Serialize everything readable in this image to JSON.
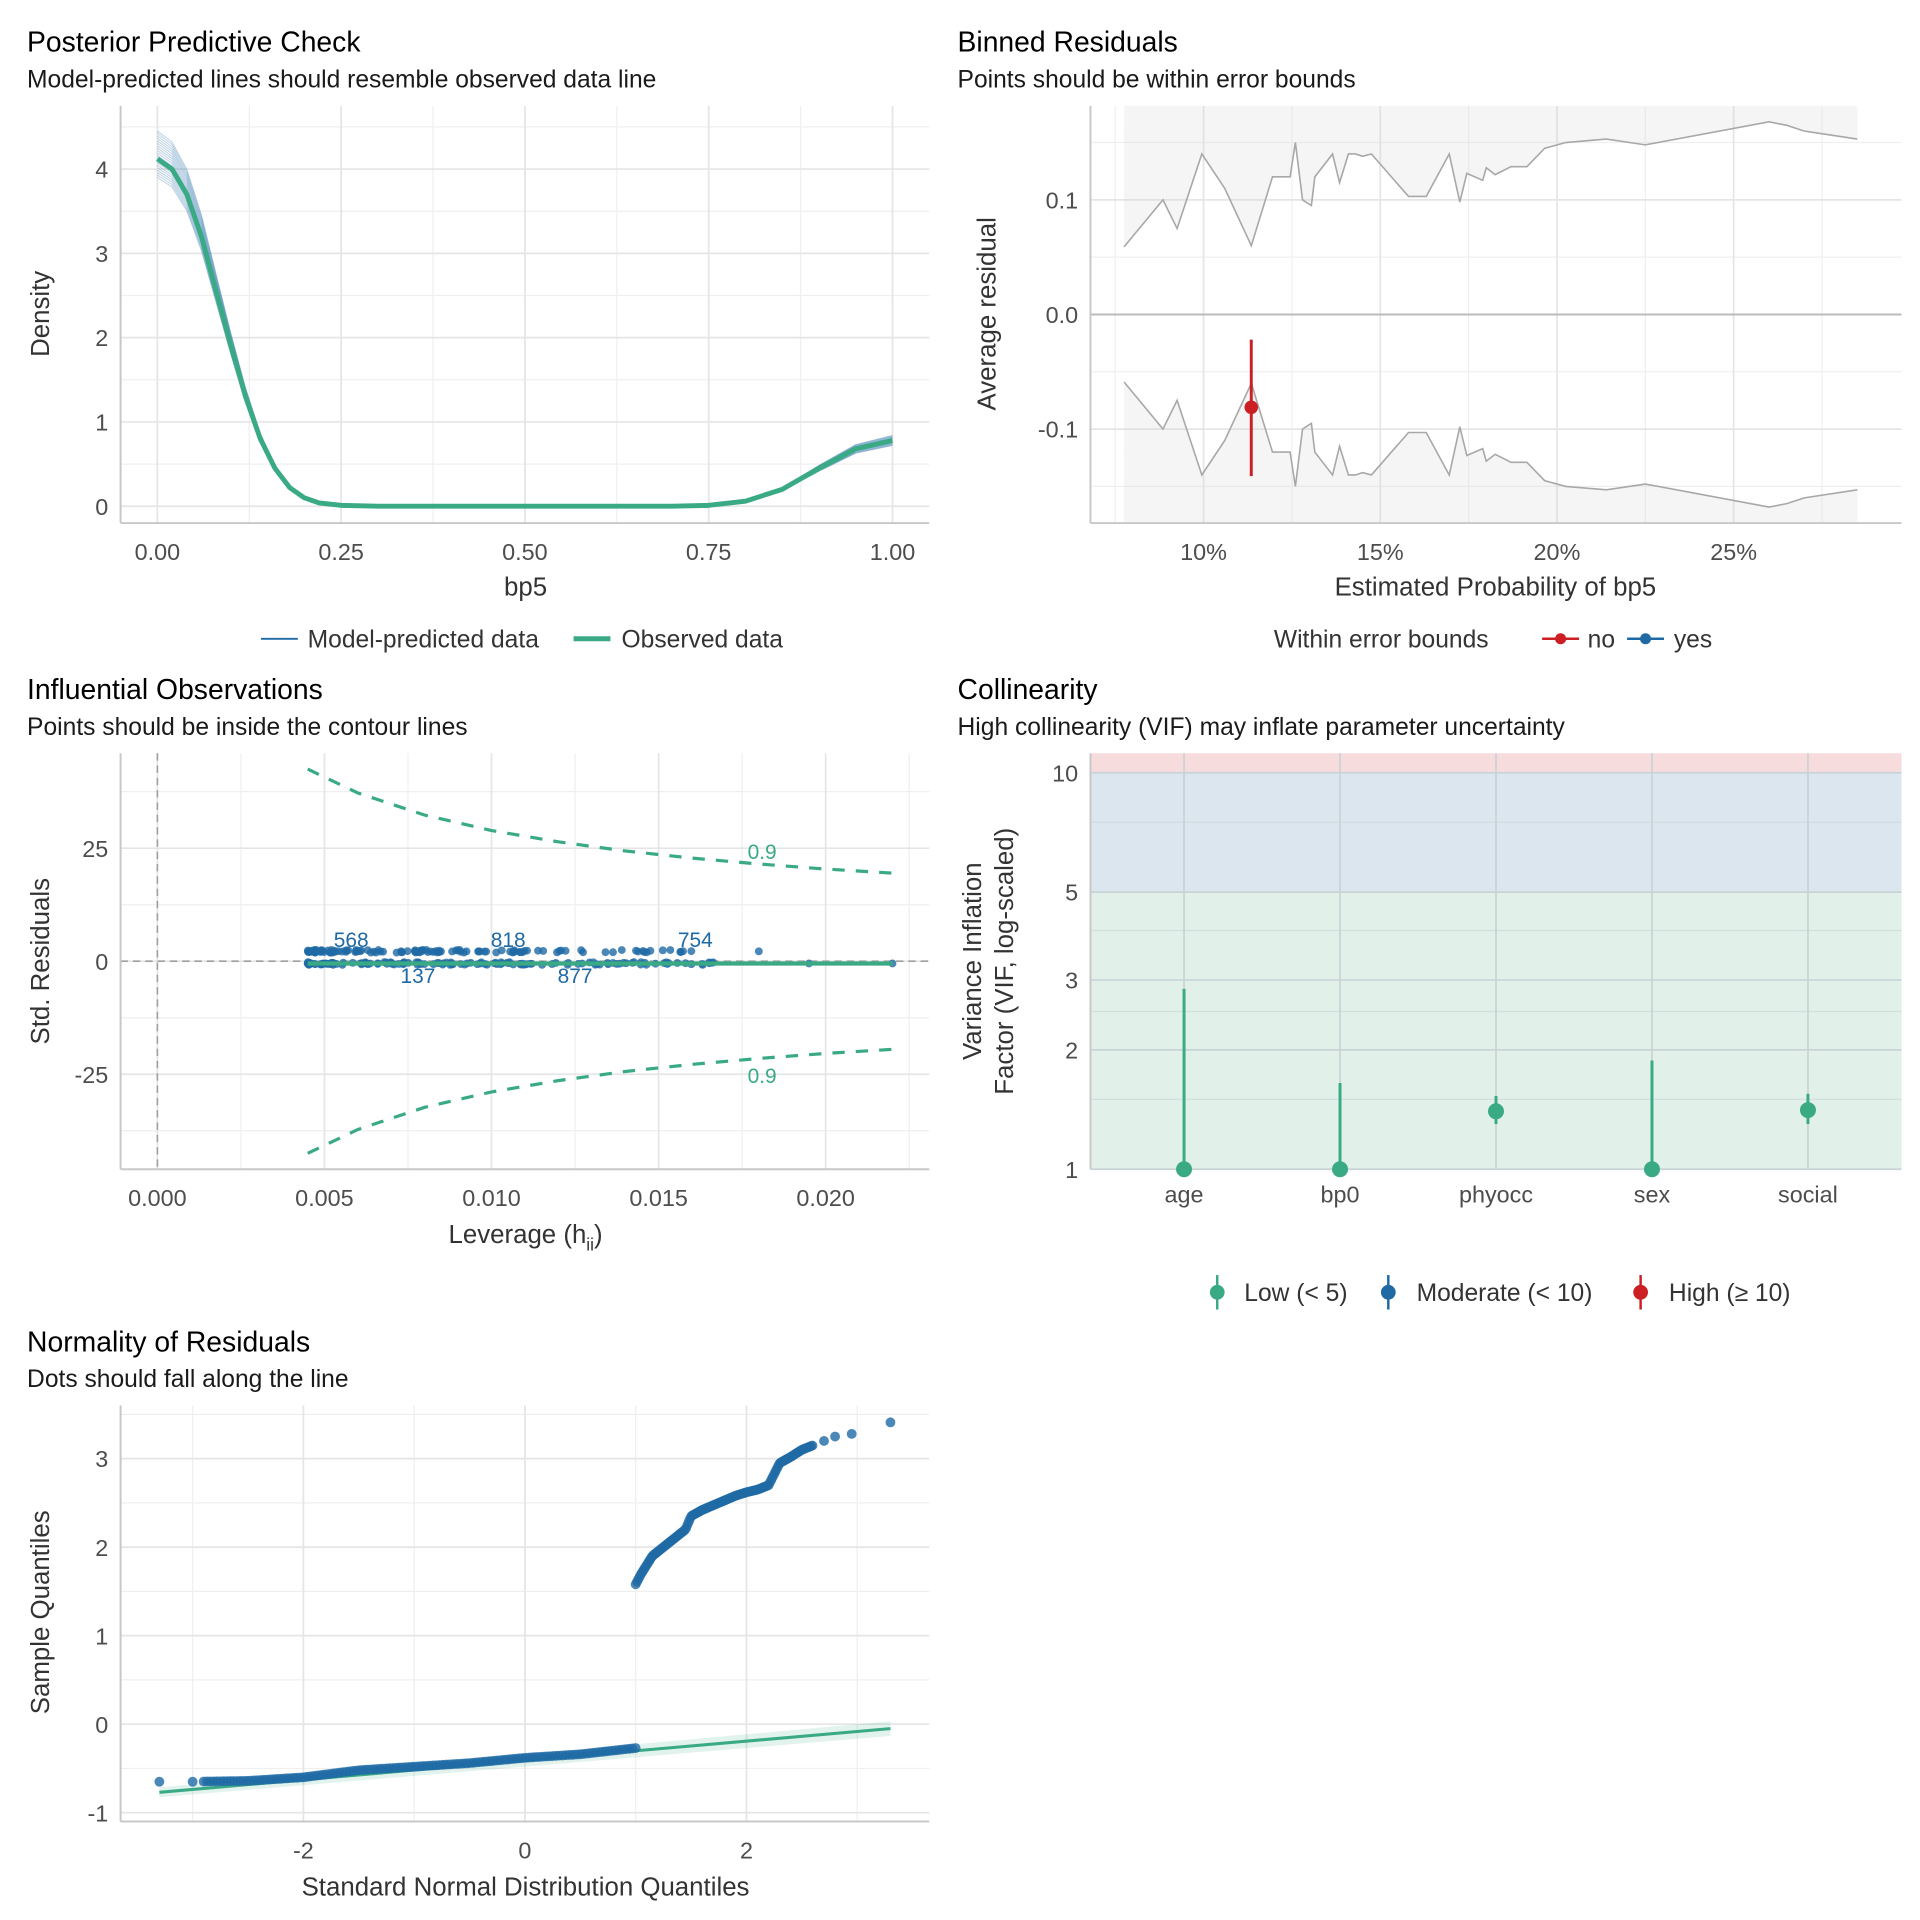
{
  "chart_data": [
    {
      "id": "ppc",
      "type": "line",
      "title": "Posterior Predictive Check",
      "subtitle": "Model-predicted lines should resemble observed data line",
      "xlabel": "bp5",
      "ylabel": "Density",
      "xlim": [
        -0.05,
        1.05
      ],
      "ylim": [
        -0.2,
        4.75
      ],
      "xticks": [
        0.0,
        0.25,
        0.5,
        0.75,
        1.0
      ],
      "xtick_labels": [
        "0.00",
        "0.25",
        "0.50",
        "0.75",
        "1.00"
      ],
      "yticks": [
        0,
        1,
        2,
        3,
        4
      ],
      "ytick_labels": [
        "0",
        "1",
        "2",
        "3",
        "4"
      ],
      "grid": true,
      "legend": {
        "position": "bottom",
        "items": [
          {
            "label": "Model-predicted data",
            "color": "#1f6aa5"
          },
          {
            "label": "Observed data",
            "color": "#3aaa85"
          }
        ]
      },
      "series": [
        {
          "name": "Observed data",
          "color": "#3aaa85",
          "x": [
            0.0,
            0.02,
            0.04,
            0.06,
            0.08,
            0.1,
            0.12,
            0.14,
            0.16,
            0.18,
            0.2,
            0.22,
            0.25,
            0.3,
            0.4,
            0.5,
            0.6,
            0.7,
            0.75,
            0.8,
            0.85,
            0.9,
            0.95,
            1.0
          ],
          "y": [
            4.12,
            4.0,
            3.7,
            3.2,
            2.55,
            1.9,
            1.3,
            0.8,
            0.45,
            0.22,
            0.1,
            0.04,
            0.01,
            0.0,
            0.0,
            0.0,
            0.0,
            0.0,
            0.01,
            0.06,
            0.2,
            0.45,
            0.68,
            0.78
          ]
        }
      ],
      "model_predicted_draws": {
        "color": "#1f6aa5",
        "count": 20,
        "peak_range_at_x0": [
          3.9,
          4.45
        ],
        "value_range_at_x1": [
          0.72,
          0.84
        ]
      }
    },
    {
      "id": "binned",
      "type": "line",
      "title": "Binned Residuals",
      "subtitle": "Points should be within error bounds",
      "xlabel": "Estimated Probability of bp5",
      "ylabel": "Average residual",
      "xlim": [
        0.068,
        0.2975
      ],
      "ylim": [
        -0.182,
        0.182
      ],
      "xticks": [
        0.1,
        0.15,
        0.2,
        0.25
      ],
      "xtick_labels": [
        "10%",
        "15%",
        "20%",
        "25%"
      ],
      "yticks": [
        -0.1,
        0.0,
        0.1
      ],
      "ytick_labels": [
        "-0.1",
        "0.0",
        "0.1"
      ],
      "grid": true,
      "legend": {
        "position": "bottom",
        "title": "Within error bounds",
        "items": [
          {
            "label": "no",
            "color": "#cb1f23"
          },
          {
            "label": "yes",
            "color": "#1f6aa5"
          }
        ]
      },
      "bounds_x": [
        0.0775,
        0.0885,
        0.0925,
        0.0995,
        0.106,
        0.1135,
        0.1195,
        0.1215,
        0.1245,
        0.126,
        0.128,
        0.1305,
        0.1315,
        0.1365,
        0.1385,
        0.141,
        0.143,
        0.145,
        0.1475,
        0.158,
        0.163,
        0.1695,
        0.1725,
        0.1745,
        0.179,
        0.18,
        0.1825,
        0.187,
        0.1915,
        0.1965,
        0.2025,
        0.214,
        0.225,
        0.26,
        0.265,
        0.27,
        0.285
      ],
      "upper_bound": [
        0.059,
        0.1,
        0.075,
        0.14,
        0.11,
        0.06,
        0.12,
        0.12,
        0.12,
        0.15,
        0.1,
        0.095,
        0.12,
        0.14,
        0.115,
        0.14,
        0.14,
        0.138,
        0.14,
        0.103,
        0.103,
        0.14,
        0.098,
        0.123,
        0.117,
        0.128,
        0.122,
        0.129,
        0.129,
        0.145,
        0.15,
        0.153,
        0.148,
        0.168,
        0.165,
        0.16,
        0.153
      ],
      "lower_bound": [
        -0.059,
        -0.1,
        -0.075,
        -0.14,
        -0.11,
        -0.06,
        -0.12,
        -0.12,
        -0.12,
        -0.15,
        -0.1,
        -0.095,
        -0.12,
        -0.14,
        -0.115,
        -0.14,
        -0.14,
        -0.138,
        -0.14,
        -0.103,
        -0.103,
        -0.14,
        -0.098,
        -0.123,
        -0.117,
        -0.128,
        -0.122,
        -0.129,
        -0.129,
        -0.145,
        -0.15,
        -0.153,
        -0.148,
        -0.168,
        -0.165,
        -0.16,
        -0.153
      ],
      "points": [
        {
          "x": 0.1135,
          "y": -0.081,
          "ymin": -0.022,
          "ymax": -0.141,
          "within": "no",
          "color": "#cb1f23"
        }
      ]
    },
    {
      "id": "influential",
      "type": "scatter",
      "title": "Influential Observations",
      "subtitle": "Points should be inside the contour lines",
      "xlabel": "Leverage (h",
      "xlabel_sub": "ii",
      "xlabel_end": ")",
      "ylabel": "Std. Residuals",
      "xlim": [
        -0.0011,
        0.0231
      ],
      "ylim": [
        -46,
        46
      ],
      "xticks": [
        0.0,
        0.005,
        0.01,
        0.015,
        0.02
      ],
      "xtick_labels": [
        "0.000",
        "0.005",
        "0.010",
        "0.015",
        "0.020"
      ],
      "yticks": [
        -25,
        0,
        25
      ],
      "ytick_labels": [
        "-25",
        "0",
        "25"
      ],
      "grid": true,
      "contour_label": "0.9",
      "contour_color": "#3aaa85",
      "contour_x": [
        0.0045,
        0.006,
        0.008,
        0.01,
        0.012,
        0.014,
        0.016,
        0.018,
        0.02,
        0.022
      ],
      "contour_upper": [
        42.5,
        37.2,
        32.3,
        28.9,
        26.4,
        24.4,
        22.8,
        21.5,
        20.4,
        19.5
      ],
      "contour_lower": [
        -42.5,
        -37.2,
        -32.3,
        -28.9,
        -26.4,
        -24.4,
        -22.8,
        -21.5,
        -20.4,
        -19.5
      ],
      "fit_line": {
        "x": [
          0.0045,
          0.022
        ],
        "y": [
          -0.5,
          -0.5
        ],
        "color": "#3aaa85"
      },
      "upper_cluster": {
        "y": 2.2,
        "x_range": [
          0.0045,
          0.018
        ],
        "color": "#1f6aa5"
      },
      "lower_cluster": {
        "y": -0.5,
        "x_range": [
          0.0045,
          0.022
        ],
        "color": "#1f6aa5"
      },
      "labels": [
        {
          "text": "568",
          "x": 0.0058,
          "y": 4.8
        },
        {
          "text": "818",
          "x": 0.0105,
          "y": 4.8
        },
        {
          "text": "754",
          "x": 0.0161,
          "y": 4.8
        },
        {
          "text": "137",
          "x": 0.0078,
          "y": -3.2
        },
        {
          "text": "877",
          "x": 0.0125,
          "y": -3.2
        }
      ]
    },
    {
      "id": "collinearity",
      "type": "scatter",
      "title": "Collinearity",
      "subtitle": "High collinearity (VIF) may inflate parameter uncertainty",
      "xlabel": "",
      "ylabel": "Variance Inflation Factor (VIF, log-scaled)",
      "ylabel_lines": [
        "Variance Inflation",
        "Factor (VIF, log-scaled)"
      ],
      "yscale": "log",
      "ylim": [
        1,
        11.2
      ],
      "yticks": [
        1,
        2,
        3,
        5,
        10
      ],
      "ytick_labels": [
        "1",
        "2",
        "3",
        "5",
        "10"
      ],
      "categories": [
        "age",
        "bp0",
        "phyocc",
        "sex",
        "social"
      ],
      "values": [
        1.0,
        1.0,
        1.4,
        1.0,
        1.41
      ],
      "ci_high": [
        2.85,
        1.65,
        1.53,
        1.88,
        1.55
      ],
      "ci_low": [
        1.0,
        1.0,
        1.3,
        1.0,
        1.3
      ],
      "zones": [
        {
          "label": "Low (< 5)",
          "from": 1,
          "to": 5,
          "color": "#e1f1ea"
        },
        {
          "label": "Moderate (< 10)",
          "from": 5,
          "to": 10,
          "color": "#dbe6ef"
        },
        {
          "label": "High (≥ 10)",
          "from": 10,
          "to": 11.2,
          "color": "#f7dcde"
        }
      ],
      "legend": {
        "position": "bottom",
        "items": [
          {
            "label": "Low (< 5)",
            "color": "#3aaa85"
          },
          {
            "label": "Moderate (< 10)",
            "color": "#1f6aa5"
          },
          {
            "label": "High (≥ 10)",
            "color": "#cb1f23"
          }
        ]
      }
    },
    {
      "id": "qq",
      "type": "scatter",
      "title": "Normality of Residuals",
      "subtitle": "Dots should fall along the line",
      "xlabel": "Standard Normal Distribution Quantiles",
      "ylabel": "Sample Quantiles",
      "xlim": [
        -3.65,
        3.65
      ],
      "ylim": [
        -1.1,
        3.6
      ],
      "xticks": [
        -2,
        0,
        2
      ],
      "xtick_labels": [
        "-2",
        "0",
        "2"
      ],
      "yticks": [
        -1,
        0,
        1,
        2,
        3
      ],
      "ytick_labels": [
        "-1",
        "0",
        "1",
        "2",
        "3"
      ],
      "grid": true,
      "reference_line": {
        "x": [
          -3.3,
          3.3
        ],
        "y": [
          -0.77,
          -0.05
        ],
        "color": "#3aaa85"
      },
      "lower_points": {
        "x": [
          -3.3,
          -3.0,
          -2.5,
          -2.0,
          -1.5,
          -1.0,
          -0.5,
          0.0,
          0.5,
          1.0
        ],
        "y": [
          -0.65,
          -0.65,
          -0.64,
          -0.6,
          -0.52,
          -0.48,
          -0.44,
          -0.38,
          -0.34,
          -0.27
        ]
      },
      "upper_points": {
        "x": [
          1.0,
          1.05,
          1.15,
          1.3,
          1.45,
          1.5,
          1.6,
          1.75,
          1.9,
          2.0,
          2.1,
          2.2,
          2.3,
          2.4,
          2.5,
          2.6,
          2.8,
          2.95,
          3.0,
          3.3
        ],
        "y": [
          1.58,
          1.7,
          1.9,
          2.05,
          2.2,
          2.35,
          2.42,
          2.5,
          2.58,
          2.62,
          2.65,
          2.7,
          2.95,
          3.02,
          3.1,
          3.15,
          3.25,
          3.28,
          3.29,
          3.41
        ]
      },
      "point_color": "#1f6aa5"
    }
  ]
}
